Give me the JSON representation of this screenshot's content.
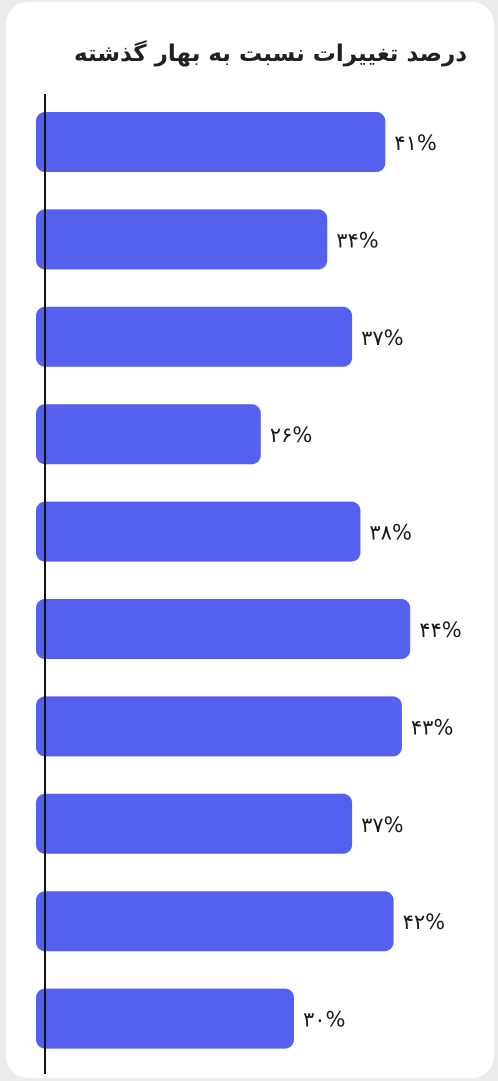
{
  "chart_data": {
    "type": "bar",
    "orientation": "horizontal",
    "title": "درصد تغییرات نسبت به بهار گذشته",
    "values": [
      41,
      34,
      37,
      26,
      38,
      44,
      43,
      37,
      42,
      30
    ],
    "labels": [
      "۴۱%",
      "۳۴%",
      "۳۷%",
      "۲۶%",
      "۳۸%",
      "۴۴%",
      "۴۳%",
      "۳۷%",
      "۴۲%",
      "۳۰%"
    ],
    "xlim": [
      0,
      45
    ],
    "bar_color": "#5560ee",
    "grid": false,
    "legend": "none"
  }
}
